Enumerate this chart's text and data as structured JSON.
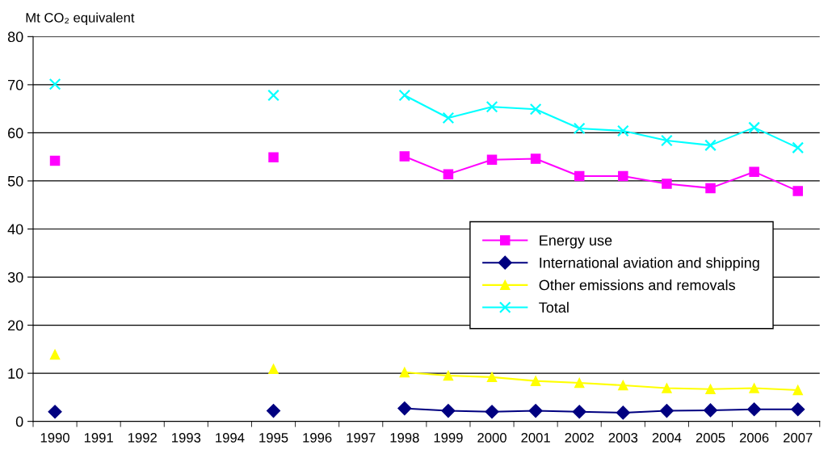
{
  "chart_data": {
    "type": "line",
    "ylabel": "Mt CO₂ equivalent",
    "categories": [
      "1990",
      "1991",
      "1992",
      "1993",
      "1994",
      "1995",
      "1996",
      "1997",
      "1998",
      "1999",
      "2000",
      "2001",
      "2002",
      "2003",
      "2004",
      "2005",
      "2006",
      "2007"
    ],
    "series": [
      {
        "name": "Energy use",
        "color": "#ff00ff",
        "marker": "square",
        "values": [
          54.2,
          null,
          null,
          null,
          null,
          54.9,
          null,
          null,
          55.1,
          51.4,
          54.4,
          54.6,
          51.0,
          51.0,
          49.4,
          48.5,
          51.9,
          47.9
        ]
      },
      {
        "name": "International aviation and shipping",
        "color": "#000080",
        "marker": "diamond",
        "values": [
          2.0,
          null,
          null,
          null,
          null,
          2.2,
          null,
          null,
          2.7,
          2.2,
          2.0,
          2.2,
          2.0,
          1.8,
          2.2,
          2.3,
          2.5,
          2.5
        ]
      },
      {
        "name": "Other emissions and removals",
        "color": "#ffff00",
        "marker": "triangle",
        "values": [
          13.9,
          null,
          null,
          null,
          null,
          10.9,
          null,
          null,
          10.2,
          9.5,
          9.2,
          8.4,
          8.0,
          7.5,
          6.9,
          6.7,
          6.9,
          6.5
        ]
      },
      {
        "name": "Total",
        "color": "#00ffff",
        "marker": "cross",
        "values": [
          70.1,
          null,
          null,
          null,
          null,
          67.8,
          null,
          null,
          67.8,
          63.1,
          65.4,
          64.9,
          60.9,
          60.4,
          58.4,
          57.4,
          61.1,
          56.9
        ]
      }
    ],
    "ylim": [
      0,
      80
    ],
    "yticks": [
      0,
      10,
      20,
      30,
      40,
      50,
      60,
      70,
      80
    ],
    "grid": "y",
    "legend": "right",
    "line_style": "solid"
  }
}
